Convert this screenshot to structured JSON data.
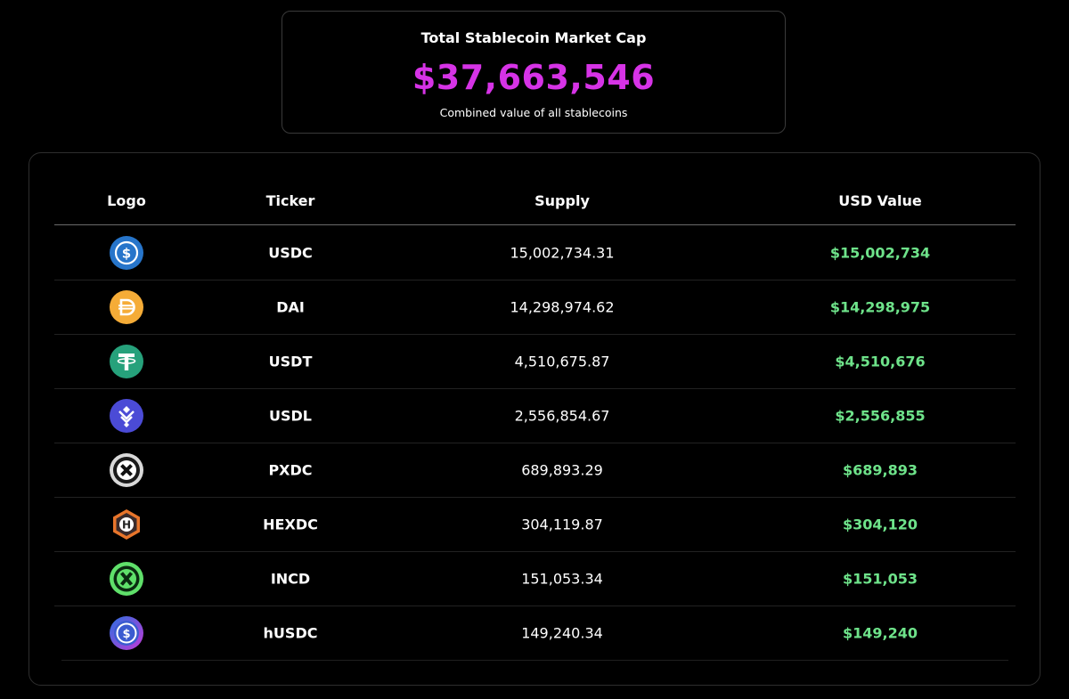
{
  "summary": {
    "title": "Total Stablecoin Market Cap",
    "value": "$37,663,546",
    "subtitle": "Combined value of all stablecoins"
  },
  "table": {
    "headers": {
      "logo": "Logo",
      "ticker": "Ticker",
      "supply": "Supply",
      "usd": "USD Value"
    },
    "rows": [
      {
        "ticker": "USDC",
        "supply": "15,002,734.31",
        "usd": "$15,002,734",
        "icon": "usdc-icon"
      },
      {
        "ticker": "DAI",
        "supply": "14,298,974.62",
        "usd": "$14,298,975",
        "icon": "dai-icon"
      },
      {
        "ticker": "USDT",
        "supply": "4,510,675.87",
        "usd": "$4,510,676",
        "icon": "usdt-icon"
      },
      {
        "ticker": "USDL",
        "supply": "2,556,854.67",
        "usd": "$2,556,855",
        "icon": "usdl-icon"
      },
      {
        "ticker": "PXDC",
        "supply": "689,893.29",
        "usd": "$689,893",
        "icon": "pxdc-icon"
      },
      {
        "ticker": "HEXDC",
        "supply": "304,119.87",
        "usd": "$304,120",
        "icon": "hexdc-icon"
      },
      {
        "ticker": "INCD",
        "supply": "151,053.34",
        "usd": "$151,053",
        "icon": "incd-icon"
      },
      {
        "ticker": "hUSDC",
        "supply": "149,240.34",
        "usd": "$149,240",
        "icon": "husdc-icon"
      }
    ]
  },
  "colors": {
    "accent_value": "#d633e6",
    "usd_green": "#6ee38a",
    "background": "#000000"
  }
}
